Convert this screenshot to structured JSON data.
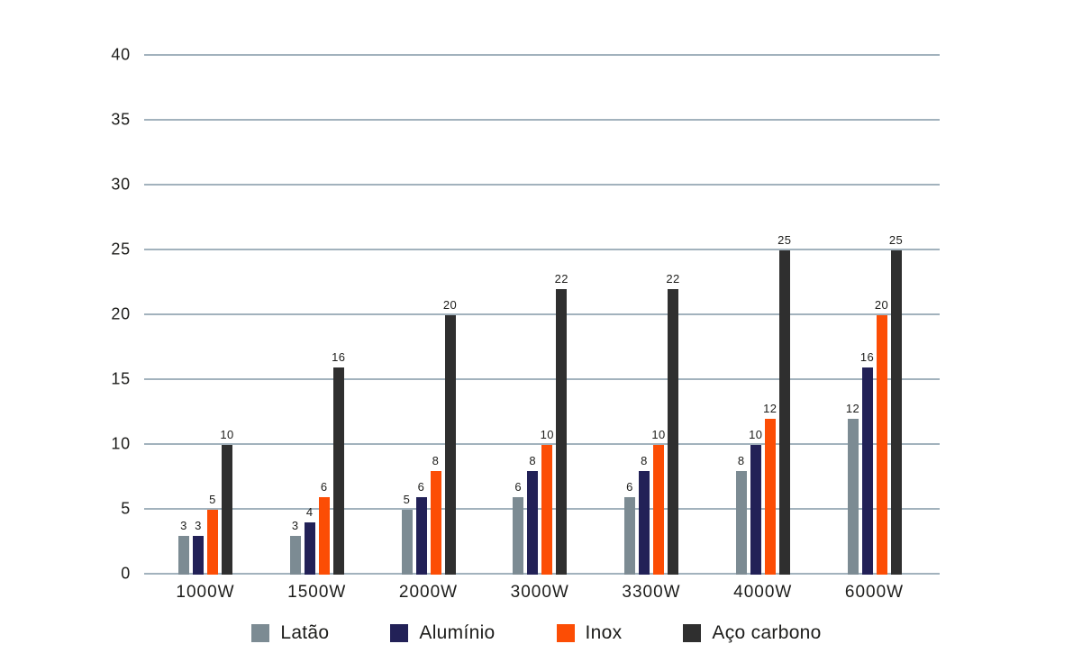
{
  "chart_data": {
    "type": "bar",
    "title": "",
    "xlabel": "",
    "ylabel": "",
    "categories": [
      "1000W",
      "1500W",
      "2000W",
      "3000W",
      "3300W",
      "4000W",
      "6000W"
    ],
    "series": [
      {
        "name": "Latão",
        "color": "#7c8b93",
        "values": [
          3,
          3,
          5,
          6,
          6,
          8,
          12
        ]
      },
      {
        "name": "Alumínio",
        "color": "#222157",
        "values": [
          3,
          4,
          6,
          8,
          8,
          10,
          16
        ]
      },
      {
        "name": "Inox",
        "color": "#fc4d05",
        "values": [
          5,
          6,
          8,
          10,
          10,
          12,
          20
        ]
      },
      {
        "name": "Aço carbono",
        "color": "#2f2f2f",
        "values": [
          10,
          16,
          20,
          22,
          22,
          25,
          25
        ]
      }
    ],
    "y_ticks": [
      0,
      5,
      10,
      15,
      20,
      25,
      30,
      35,
      40
    ],
    "ylim": [
      0,
      40
    ],
    "grid": true,
    "data_labels": true,
    "legend_position": "bottom"
  },
  "colors": {
    "background": "#ffffff",
    "gridline": "#a2b2bd",
    "text": "#1d1d1b"
  }
}
